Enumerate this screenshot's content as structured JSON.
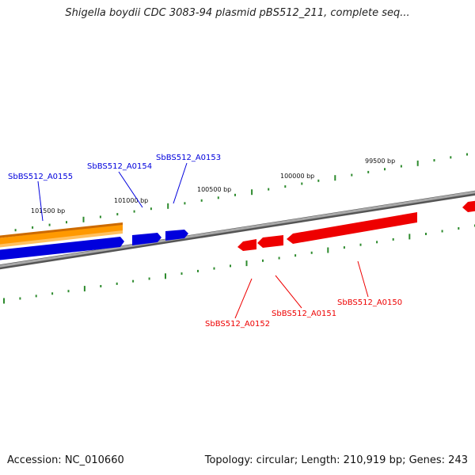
{
  "title": "Shigella boydii CDC 3083-94 plasmid pBS512_211, complete seq...",
  "footer": {
    "accession": "Accession: NC_010660",
    "stats": "Topology: circular; Length: 210,919 bp; Genes: 243"
  },
  "colors": {
    "backbone": "#8a8a8a",
    "tick": "#2e8b2e",
    "forward_gene": "#0000dd",
    "reverse_gene": "#ee0000",
    "highlight_gene": "#ff9900"
  },
  "tick_labels": [
    {
      "text": "101500 bp"
    },
    {
      "text": "101000 bp"
    },
    {
      "text": "100500 bp"
    },
    {
      "text": "100000 bp"
    },
    {
      "text": "99500 bp"
    }
  ],
  "genes": {
    "forward": [
      {
        "id": "SbBS512_A0155"
      },
      {
        "id": "SbBS512_A0154"
      },
      {
        "id": "SbBS512_A0153"
      }
    ],
    "reverse": [
      {
        "id": "SbBS512_A0152"
      },
      {
        "id": "SbBS512_A0151"
      },
      {
        "id": "SbBS512_A0150"
      }
    ]
  }
}
